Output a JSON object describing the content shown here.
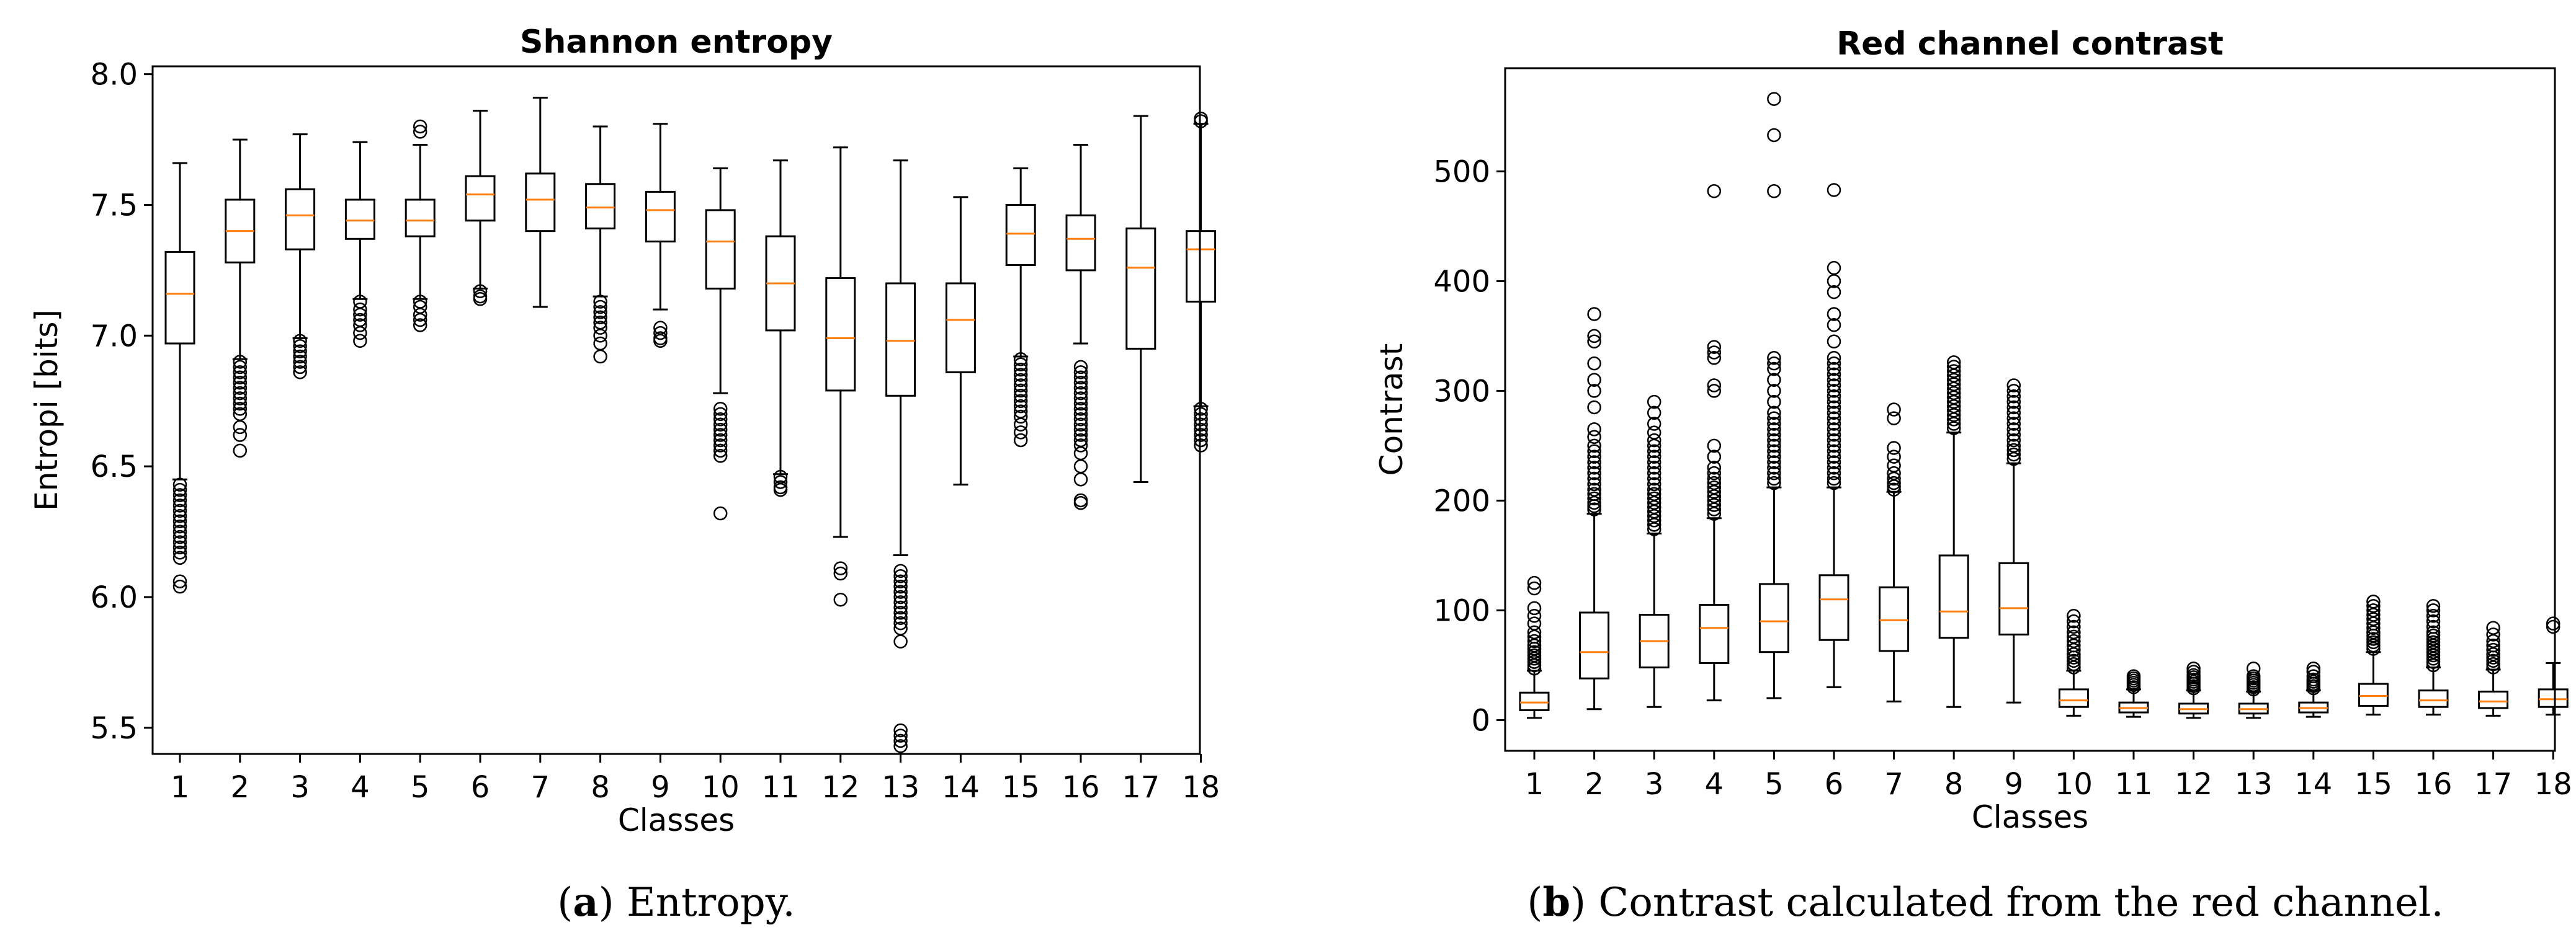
{
  "chart_data": [
    {
      "type": "boxplot",
      "title": "Shannon entropy",
      "xlabel": "Classes",
      "ylabel": "Entropi [bits]",
      "ylim": [
        5.4,
        8.03
      ],
      "yticks": [
        5.5,
        6.0,
        6.5,
        7.0,
        7.5,
        8.0
      ],
      "ytick_labels": [
        "5.5",
        "6.0",
        "6.5",
        "7.0",
        "7.5",
        "8.0"
      ],
      "categories": [
        "1",
        "2",
        "3",
        "4",
        "5",
        "6",
        "7",
        "8",
        "9",
        "10",
        "11",
        "12",
        "13",
        "14",
        "15",
        "16",
        "17",
        "18"
      ],
      "boxes": [
        {
          "whislo": 6.45,
          "q1": 6.97,
          "med": 7.16,
          "q3": 7.32,
          "whishi": 7.66,
          "fliers": [
            6.43,
            6.41,
            6.39,
            6.37,
            6.35,
            6.33,
            6.31,
            6.29,
            6.27,
            6.25,
            6.23,
            6.21,
            6.19,
            6.17,
            6.15,
            6.06,
            6.04
          ]
        },
        {
          "whislo": 6.91,
          "q1": 7.28,
          "med": 7.4,
          "q3": 7.52,
          "whishi": 7.75,
          "fliers": [
            6.9,
            6.88,
            6.86,
            6.84,
            6.82,
            6.8,
            6.78,
            6.76,
            6.74,
            6.72,
            6.7,
            6.65,
            6.62,
            6.56
          ]
        },
        {
          "whislo": 6.99,
          "q1": 7.33,
          "med": 7.46,
          "q3": 7.56,
          "whishi": 7.77,
          "fliers": [
            6.98,
            6.96,
            6.94,
            6.92,
            6.9,
            6.88,
            6.86
          ]
        },
        {
          "whislo": 7.14,
          "q1": 7.37,
          "med": 7.44,
          "q3": 7.52,
          "whishi": 7.74,
          "fliers": [
            7.13,
            7.1,
            7.08,
            7.06,
            7.04,
            7.01,
            6.98
          ]
        },
        {
          "whislo": 7.14,
          "q1": 7.38,
          "med": 7.44,
          "q3": 7.52,
          "whishi": 7.73,
          "fliers": [
            7.13,
            7.11,
            7.08,
            7.06,
            7.04,
            7.78,
            7.8
          ]
        },
        {
          "whislo": 7.18,
          "q1": 7.44,
          "med": 7.54,
          "q3": 7.61,
          "whishi": 7.86,
          "fliers": [
            7.17,
            7.15,
            7.14
          ]
        },
        {
          "whislo": 7.11,
          "q1": 7.4,
          "med": 7.52,
          "q3": 7.62,
          "whishi": 7.91,
          "fliers": []
        },
        {
          "whislo": 7.15,
          "q1": 7.41,
          "med": 7.49,
          "q3": 7.58,
          "whishi": 7.8,
          "fliers": [
            7.13,
            7.11,
            7.09,
            7.07,
            7.05,
            7.03,
            7.0,
            6.97,
            6.92
          ]
        },
        {
          "whislo": 7.1,
          "q1": 7.36,
          "med": 7.48,
          "q3": 7.55,
          "whishi": 7.81,
          "fliers": [
            7.03,
            7.01,
            6.99,
            6.98
          ]
        },
        {
          "whislo": 6.78,
          "q1": 7.18,
          "med": 7.36,
          "q3": 7.48,
          "whishi": 7.64,
          "fliers": [
            6.72,
            6.7,
            6.68,
            6.66,
            6.64,
            6.62,
            6.6,
            6.58,
            6.56,
            6.54,
            6.32
          ]
        },
        {
          "whislo": 6.47,
          "q1": 7.02,
          "med": 7.2,
          "q3": 7.38,
          "whishi": 7.67,
          "fliers": [
            6.46,
            6.44,
            6.42,
            6.41
          ]
        },
        {
          "whislo": 6.23,
          "q1": 6.79,
          "med": 6.99,
          "q3": 7.22,
          "whishi": 7.72,
          "fliers": [
            6.11,
            6.09,
            5.99
          ]
        },
        {
          "whislo": 6.16,
          "q1": 6.77,
          "med": 6.98,
          "q3": 7.2,
          "whishi": 7.67,
          "fliers": [
            6.1,
            6.08,
            6.06,
            6.04,
            6.02,
            6.0,
            5.98,
            5.96,
            5.94,
            5.92,
            5.9,
            5.88,
            5.83,
            5.49,
            5.47,
            5.45,
            5.43
          ]
        },
        {
          "whislo": 6.43,
          "q1": 6.86,
          "med": 7.06,
          "q3": 7.2,
          "whishi": 7.53,
          "fliers": []
        },
        {
          "whislo": 6.92,
          "q1": 7.27,
          "med": 7.39,
          "q3": 7.5,
          "whishi": 7.64,
          "fliers": [
            6.91,
            6.89,
            6.87,
            6.85,
            6.83,
            6.81,
            6.79,
            6.77,
            6.75,
            6.73,
            6.71,
            6.69,
            6.66,
            6.63,
            6.6
          ]
        },
        {
          "whislo": 6.97,
          "q1": 7.25,
          "med": 7.37,
          "q3": 7.46,
          "whishi": 7.73,
          "fliers": [
            6.88,
            6.86,
            6.84,
            6.82,
            6.8,
            6.78,
            6.76,
            6.74,
            6.72,
            6.7,
            6.68,
            6.66,
            6.64,
            6.62,
            6.6,
            6.58,
            6.55,
            6.5,
            6.45,
            6.37,
            6.36
          ]
        },
        {
          "whislo": 6.44,
          "q1": 6.95,
          "med": 7.26,
          "q3": 7.41,
          "whishi": 7.84,
          "fliers": []
        },
        {
          "whislo": 6.73,
          "q1": 7.13,
          "med": 7.33,
          "q3": 7.4,
          "whishi": 7.81,
          "fliers": [
            6.72,
            6.7,
            6.68,
            6.66,
            6.64,
            6.62,
            6.6,
            6.58,
            7.82,
            7.83
          ]
        }
      ]
    },
    {
      "type": "boxplot",
      "title": "Red channel contrast",
      "xlabel": "Classes",
      "ylabel": "Contrast",
      "ylim": [
        -28,
        594
      ],
      "yticks": [
        0,
        100,
        200,
        300,
        400,
        500
      ],
      "ytick_labels": [
        "0",
        "100",
        "200",
        "300",
        "400",
        "500"
      ],
      "categories": [
        "1",
        "2",
        "3",
        "4",
        "5",
        "6",
        "7",
        "8",
        "9",
        "10",
        "11",
        "12",
        "13",
        "14",
        "15",
        "16",
        "17",
        "18"
      ],
      "boxes": [
        {
          "whislo": 2,
          "q1": 9,
          "med": 16,
          "q3": 25,
          "whishi": 45,
          "fliers": [
            47,
            50,
            53,
            56,
            59,
            62,
            65,
            68,
            72,
            76,
            80,
            88,
            95,
            102,
            120,
            125
          ]
        },
        {
          "whislo": 10,
          "q1": 38,
          "med": 62,
          "q3": 98,
          "whishi": 188,
          "fliers": [
            192,
            195,
            198,
            202,
            206,
            210,
            215,
            220,
            225,
            230,
            235,
            240,
            245,
            250,
            258,
            265,
            285,
            300,
            310,
            325,
            345,
            350,
            370
          ]
        },
        {
          "whislo": 12,
          "q1": 48,
          "med": 72,
          "q3": 96,
          "whishi": 170,
          "fliers": [
            174,
            178,
            182,
            186,
            190,
            194,
            198,
            202,
            206,
            210,
            215,
            220,
            225,
            230,
            235,
            240,
            245,
            250,
            255,
            262,
            270,
            280,
            290
          ]
        },
        {
          "whislo": 18,
          "q1": 52,
          "med": 84,
          "q3": 105,
          "whishi": 184,
          "fliers": [
            188,
            192,
            196,
            200,
            204,
            208,
            212,
            216,
            220,
            225,
            230,
            240,
            250,
            300,
            305,
            330,
            335,
            340,
            482
          ]
        },
        {
          "whislo": 20,
          "q1": 62,
          "med": 90,
          "q3": 124,
          "whishi": 212,
          "fliers": [
            216,
            220,
            225,
            230,
            235,
            240,
            245,
            250,
            255,
            260,
            265,
            270,
            275,
            280,
            290,
            300,
            310,
            320,
            325,
            330,
            482,
            533,
            566
          ]
        },
        {
          "whislo": 30,
          "q1": 73,
          "med": 110,
          "q3": 132,
          "whishi": 212,
          "fliers": [
            216,
            220,
            225,
            230,
            235,
            240,
            245,
            250,
            255,
            260,
            265,
            270,
            275,
            280,
            285,
            290,
            295,
            300,
            305,
            310,
            315,
            320,
            325,
            330,
            345,
            360,
            370,
            390,
            400,
            412,
            483
          ]
        },
        {
          "whislo": 17,
          "q1": 63,
          "med": 91,
          "q3": 121,
          "whishi": 208,
          "fliers": [
            210,
            213,
            216,
            220,
            225,
            232,
            240,
            248,
            275,
            283
          ]
        },
        {
          "whislo": 12,
          "q1": 75,
          "med": 99,
          "q3": 150,
          "whishi": 262,
          "fliers": [
            266,
            270,
            274,
            278,
            282,
            286,
            290,
            294,
            298,
            302,
            306,
            310,
            314,
            318,
            322,
            326
          ]
        },
        {
          "whislo": 16,
          "q1": 78,
          "med": 102,
          "q3": 143,
          "whishi": 234,
          "fliers": [
            238,
            242,
            246,
            250,
            255,
            260,
            265,
            270,
            275,
            280,
            285,
            290,
            295,
            300,
            305
          ]
        },
        {
          "whislo": 4,
          "q1": 12,
          "med": 18,
          "q3": 28,
          "whishi": 45,
          "fliers": [
            48,
            51,
            54,
            57,
            60,
            64,
            68,
            72,
            76,
            80,
            85,
            90,
            95
          ]
        },
        {
          "whislo": 3,
          "q1": 7,
          "med": 11,
          "q3": 16,
          "whishi": 28,
          "fliers": [
            30,
            32,
            34,
            36,
            38,
            40
          ]
        },
        {
          "whislo": 2,
          "q1": 6,
          "med": 10,
          "q3": 15,
          "whishi": 27,
          "fliers": [
            29,
            31,
            33,
            35,
            37,
            39,
            41,
            44,
            47
          ]
        },
        {
          "whislo": 2,
          "q1": 6,
          "med": 10,
          "q3": 15,
          "whishi": 26,
          "fliers": [
            28,
            30,
            32,
            34,
            36,
            38,
            40,
            47
          ]
        },
        {
          "whislo": 3,
          "q1": 7,
          "med": 11,
          "q3": 16,
          "whishi": 27,
          "fliers": [
            29,
            31,
            33,
            35,
            37,
            40,
            44,
            47
          ]
        },
        {
          "whislo": 5,
          "q1": 13,
          "med": 22,
          "q3": 33,
          "whishi": 62,
          "fliers": [
            65,
            68,
            71,
            74,
            77,
            80,
            84,
            88,
            92,
            96,
            100,
            104,
            108
          ]
        },
        {
          "whislo": 5,
          "q1": 12,
          "med": 18,
          "q3": 27,
          "whishi": 48,
          "fliers": [
            50,
            53,
            56,
            59,
            62,
            65,
            68,
            71,
            74,
            77,
            80,
            85,
            90,
            95,
            100,
            104
          ]
        },
        {
          "whislo": 4,
          "q1": 11,
          "med": 17,
          "q3": 26,
          "whishi": 46,
          "fliers": [
            48,
            51,
            54,
            57,
            60,
            64,
            68,
            72,
            78,
            84
          ]
        },
        {
          "whislo": 5,
          "q1": 12,
          "med": 19,
          "q3": 28,
          "whishi": 52,
          "fliers": [
            85,
            88
          ]
        }
      ]
    }
  ],
  "captions": {
    "a": {
      "letter": "a",
      "open": "(",
      "close": ")",
      "text": " Entropy."
    },
    "b": {
      "letter": "b",
      "open": "(",
      "close": ")",
      "text": " Contrast calculated from the red channel."
    }
  }
}
